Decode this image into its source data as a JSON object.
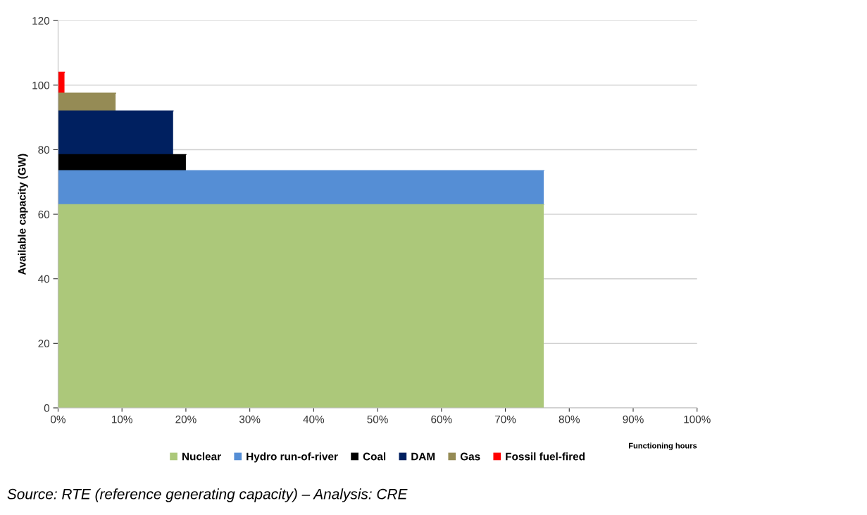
{
  "chart_data": {
    "type": "area",
    "stacked": true,
    "xlabel": "Functioning hours",
    "ylabel": "Available capacity (GW)",
    "x": [
      0,
      1,
      1,
      9,
      9,
      18,
      18,
      20,
      20,
      57,
      57,
      76
    ],
    "series": [
      {
        "name": "Nuclear",
        "color": "#acc87a",
        "values": [
          63,
          63,
          63,
          63,
          63,
          63,
          63,
          63,
          63,
          63,
          63,
          63
        ]
      },
      {
        "name": "Hydro run-of-river",
        "color": "#558ed5",
        "values": [
          10.5,
          10.5,
          10.5,
          10.5,
          10.5,
          10.5,
          10.5,
          10.5,
          10.5,
          10.5,
          10.5,
          10.5
        ]
      },
      {
        "name": "Coal",
        "color": "#000000",
        "values": [
          5,
          5,
          5,
          5,
          5,
          5,
          5,
          5,
          null,
          null,
          null,
          null
        ]
      },
      {
        "name": "DAM",
        "color": "#002060",
        "values": [
          13.5,
          13.5,
          13.5,
          13.5,
          13.5,
          13.5,
          null,
          null,
          null,
          null,
          null,
          null
        ]
      },
      {
        "name": "Gas",
        "color": "#958b55",
        "values": [
          5.5,
          5.5,
          5.5,
          5.5,
          null,
          null,
          null,
          null,
          null,
          null,
          null,
          null
        ]
      },
      {
        "name": "Fossil fuel-fired",
        "color": "#ff0000",
        "values": [
          6.5,
          6.5,
          null,
          null,
          null,
          null,
          null,
          null,
          null,
          null,
          null,
          null
        ]
      }
    ],
    "xlim": [
      0,
      100
    ],
    "xticks": [
      {
        "value": 0,
        "label": "0%"
      },
      {
        "value": 10,
        "label": "10%"
      },
      {
        "value": 20,
        "label": "20%"
      },
      {
        "value": 30,
        "label": "30%"
      },
      {
        "value": 40,
        "label": "40%"
      },
      {
        "value": 50,
        "label": "50%"
      },
      {
        "value": 60,
        "label": "60%"
      },
      {
        "value": 70,
        "label": "70%"
      },
      {
        "value": 80,
        "label": "80%"
      },
      {
        "value": 90,
        "label": "90%"
      },
      {
        "value": 100,
        "label": "100%"
      }
    ],
    "ylim": [
      0,
      120
    ],
    "yticks": [
      0,
      20,
      40,
      60,
      80,
      100,
      120
    ],
    "grid": "y",
    "legend": "bottom",
    "annotations": [
      "Source: RTE (reference generating capacity) – Analysis: CRE"
    ]
  }
}
